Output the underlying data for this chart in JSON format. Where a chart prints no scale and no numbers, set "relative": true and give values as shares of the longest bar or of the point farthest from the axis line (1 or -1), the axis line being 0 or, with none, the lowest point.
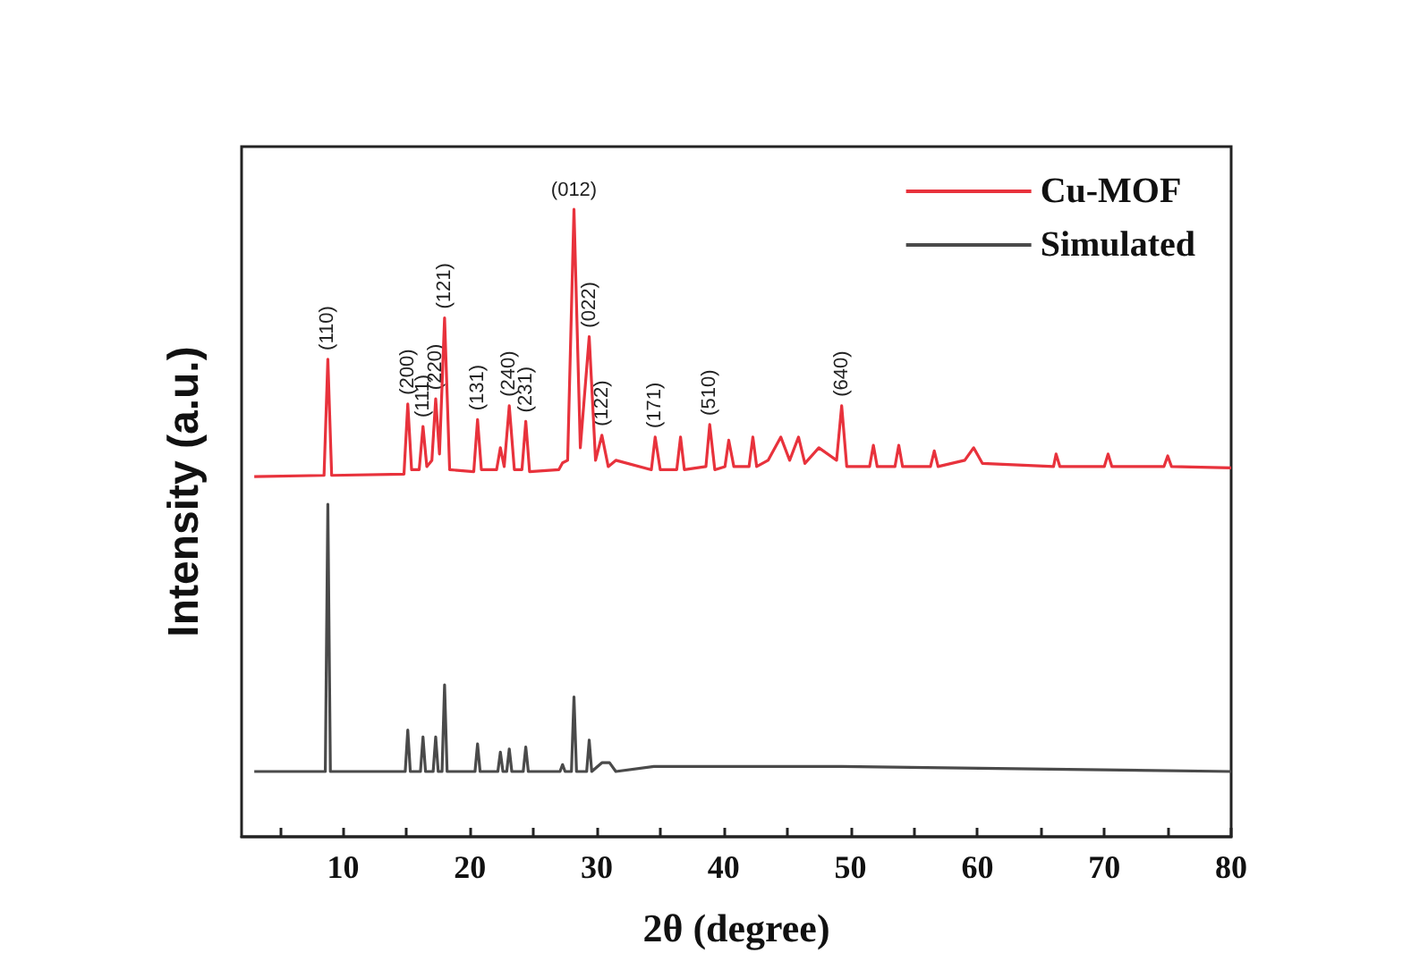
{
  "chart_data": {
    "type": "line",
    "xlabel": "2θ (degree)",
    "ylabel": "Intensity (a.u.)",
    "relative": true,
    "grid": false,
    "legend": "top right",
    "marker": "none",
    "line_style": "solid",
    "xlim": [
      2,
      80
    ],
    "xticks": [
      {
        "value": 5,
        "label": null
      },
      10,
      {
        "value": 15,
        "label": null
      },
      20,
      {
        "value": 25,
        "label": null
      },
      30,
      {
        "value": 35,
        "label": null
      },
      40,
      {
        "value": 45,
        "label": null
      },
      50,
      {
        "value": 55,
        "label": null
      },
      60,
      {
        "value": 65,
        "label": null
      },
      70,
      {
        "value": 75,
        "label": null
      },
      80
    ],
    "series": [
      {
        "name": "Cu-MOF",
        "color": "#e8323c",
        "x": [
          3,
          8.5,
          8.8,
          9.1,
          14.8,
          15.1,
          15.4,
          16.0,
          16.3,
          16.6,
          17.0,
          17.3,
          17.6,
          18.0,
          18.4,
          20.3,
          20.6,
          20.9,
          22.1,
          22.4,
          22.7,
          23.1,
          23.5,
          24.1,
          24.4,
          24.7,
          27.0,
          27.3,
          27.7,
          28.2,
          28.7,
          29.4,
          29.9,
          30.4,
          30.9,
          31.5,
          34.3,
          34.6,
          35.0,
          36.3,
          36.6,
          36.9,
          38.6,
          38.9,
          39.3,
          40.1,
          40.4,
          40.8,
          42.0,
          42.3,
          42.6,
          43.5,
          44.5,
          45.2,
          45.9,
          46.4,
          47.5,
          48.9,
          49.3,
          49.7,
          51.5,
          51.8,
          52.1,
          53.5,
          53.8,
          54.1,
          56.3,
          56.6,
          56.9,
          59.0,
          59.7,
          60.4,
          66.0,
          66.2,
          66.5,
          70.0,
          70.3,
          70.6,
          74.7,
          75.0,
          75.3,
          80
        ],
        "values": [
          0.574,
          0.576,
          0.761,
          0.576,
          0.578,
          0.69,
          0.585,
          0.585,
          0.654,
          0.59,
          0.6,
          0.698,
          0.61,
          0.827,
          0.585,
          0.582,
          0.665,
          0.585,
          0.585,
          0.62,
          0.59,
          0.687,
          0.585,
          0.585,
          0.662,
          0.582,
          0.585,
          0.596,
          0.6,
          1,
          0.62,
          0.797,
          0.6,
          0.64,
          0.59,
          0.6,
          0.585,
          0.637,
          0.585,
          0.585,
          0.637,
          0.585,
          0.59,
          0.657,
          0.585,
          0.59,
          0.632,
          0.59,
          0.59,
          0.637,
          0.59,
          0.6,
          0.637,
          0.6,
          0.637,
          0.595,
          0.62,
          0.6,
          0.687,
          0.59,
          0.59,
          0.624,
          0.59,
          0.59,
          0.624,
          0.59,
          0.59,
          0.615,
          0.59,
          0.6,
          0.62,
          0.595,
          0.59,
          0.61,
          0.59,
          0.59,
          0.61,
          0.59,
          0.59,
          0.607,
          0.59,
          0.588
        ]
      },
      {
        "name": "Simulated",
        "color": "#4a4a4a",
        "x": [
          3,
          8.6,
          8.8,
          9.0,
          14.9,
          15.1,
          15.3,
          16.1,
          16.3,
          16.5,
          17.1,
          17.3,
          17.5,
          17.8,
          18.0,
          18.2,
          20.4,
          20.6,
          20.8,
          22.2,
          22.4,
          22.6,
          22.9,
          23.1,
          23.3,
          24.2,
          24.4,
          24.6,
          27.1,
          27.3,
          27.5,
          28.0,
          28.2,
          28.4,
          29.2,
          29.4,
          29.6,
          30.4,
          31.0,
          31.5,
          34.5,
          38.8,
          49.3,
          80
        ],
        "values": [
          0.104,
          0.104,
          0.53,
          0.104,
          0.104,
          0.17,
          0.104,
          0.104,
          0.159,
          0.104,
          0.104,
          0.159,
          0.104,
          0.104,
          0.242,
          0.104,
          0.104,
          0.148,
          0.104,
          0.104,
          0.135,
          0.104,
          0.104,
          0.14,
          0.104,
          0.104,
          0.143,
          0.104,
          0.104,
          0.115,
          0.104,
          0.104,
          0.223,
          0.104,
          0.104,
          0.154,
          0.104,
          0.118,
          0.118,
          0.104,
          0.112,
          0.112,
          0.112,
          0.104
        ]
      }
    ],
    "annotations": [
      {
        "text": "(110)",
        "x": 8.8,
        "y": 0.761
      },
      {
        "text": "(200)",
        "x": 15.1,
        "y": 0.69
      },
      {
        "text": "(111)",
        "x": 16.3,
        "y": 0.654
      },
      {
        "text": "(220)",
        "x": 17.3,
        "y": 0.698
      },
      {
        "text": "(121)",
        "x": 18.0,
        "y": 0.827
      },
      {
        "text": "(131)",
        "x": 20.6,
        "y": 0.665
      },
      {
        "text": "(240)",
        "x": 23.1,
        "y": 0.687
      },
      {
        "text": "(231)",
        "x": 24.4,
        "y": 0.662
      },
      {
        "text": "(012)",
        "x": 28.2,
        "y": 1
      },
      {
        "text": "(022)",
        "x": 29.4,
        "y": 0.797
      },
      {
        "text": "(122)",
        "x": 30.4,
        "y": 0.64
      },
      {
        "text": "(171)",
        "x": 34.6,
        "y": 0.637
      },
      {
        "text": "(510)",
        "x": 38.9,
        "y": 0.657
      },
      {
        "text": "(640)",
        "x": 49.3,
        "y": 0.687
      }
    ]
  }
}
